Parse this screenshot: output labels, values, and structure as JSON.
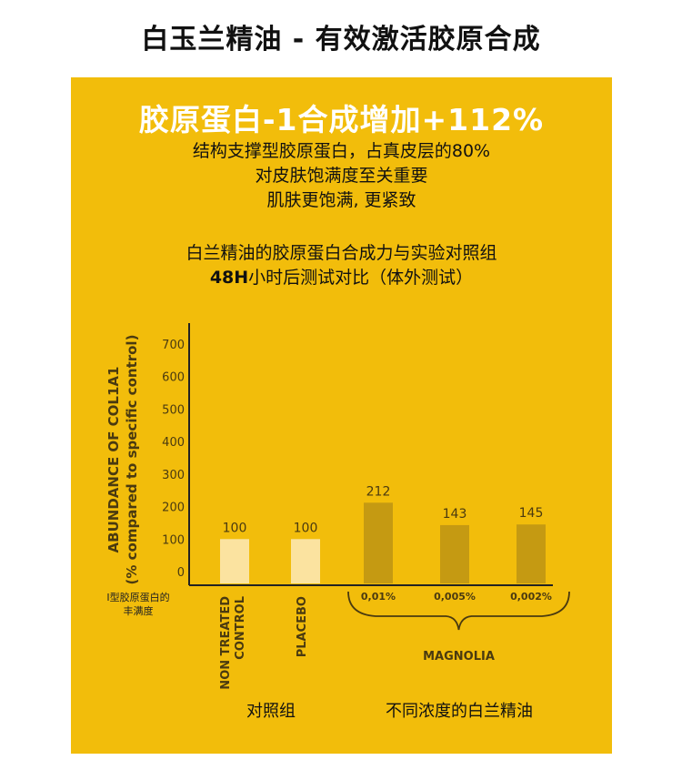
{
  "page_title": "白玉兰精油 - 有效激活胶原合成",
  "colors": {
    "panel": "#F2BD0B",
    "bar_control": "#FBE3A0",
    "bar_magnolia": "#C59A12",
    "axis": "#222222"
  },
  "headline": "胶原蛋白-1合成增加+112%",
  "sublines": [
    "结构支撑型胶原蛋白，占真皮层的80%",
    "对皮肤饱满度至关重要",
    "肌肤更饱满, 更紧致"
  ],
  "caption_line1": "白兰精油的胶原蛋白合成力与实验对照组",
  "caption_line2_bold": "48H",
  "caption_line2_rest": "小时后测试对比（体外测试）",
  "chart_data": {
    "type": "bar",
    "categories": [
      "NON TREATED CONTROL",
      "PLACEBO",
      "0,01%",
      "0,005%",
      "0,002%"
    ],
    "values": [
      100,
      100,
      212,
      143,
      145
    ],
    "value_labels": [
      "100",
      "100",
      "212",
      "143",
      "145"
    ],
    "yticks": [
      "700",
      "600",
      "500",
      "400",
      "300",
      "200",
      "100",
      "0"
    ],
    "ytick_values": [
      700,
      600,
      500,
      400,
      300,
      200,
      100,
      0
    ],
    "ylim": [
      0,
      700
    ],
    "ylabel_line1": "ABUNDANCE OF COL1A1",
    "ylabel_line2": "(% compared to specific control)",
    "groups": [
      "control",
      "control",
      "magnolia",
      "magnolia",
      "magnolia"
    ],
    "group_label_magnolia": "MAGNOLIA",
    "grid": false
  },
  "yaxis_note": [
    "I型胶原蛋白的",
    "丰满度"
  ],
  "bottom_labels": {
    "control": "对照组",
    "magnolia": "不同浓度的白兰精油"
  }
}
